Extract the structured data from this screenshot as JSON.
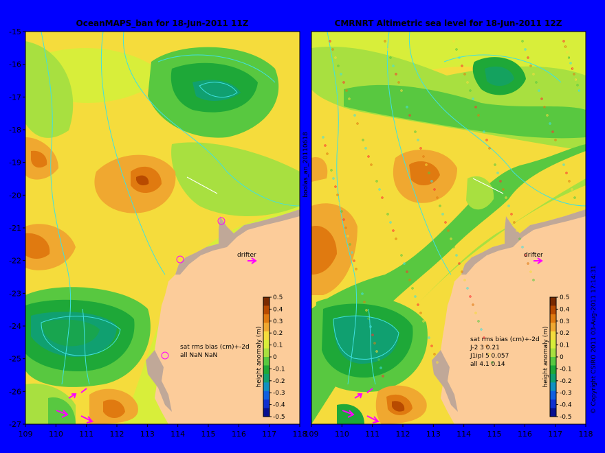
{
  "panels": [
    {
      "id": "left",
      "title": "OceanMAPS_ban for 18-Jun-2011 11Z",
      "stats": [
        "sat rms bias (cm)+-2d",
        "all NaN NaN"
      ],
      "drifter_label": "drifter"
    },
    {
      "id": "right",
      "title": "CMRNRT Altimetric sea level  for 18-Jun-2011 12Z",
      "stats": [
        "sat rms bias (cm)+-2d",
        "J-2   3 0.21",
        "J1ipl 5 0.057",
        "all 4.1 0.14"
      ],
      "drifter_label": "drifter"
    }
  ],
  "axes": {
    "x_ticks": [
      "109",
      "110",
      "111",
      "112",
      "113",
      "114",
      "115",
      "116",
      "117",
      "118"
    ],
    "y_ticks": [
      "-15",
      "-16",
      "-17",
      "-18",
      "-19",
      "-20",
      "-21",
      "-22",
      "-23",
      "-24",
      "-25",
      "-26",
      "-27"
    ],
    "x_range": [
      109,
      118
    ],
    "y_range": [
      -27,
      -15
    ]
  },
  "colorbar": {
    "label": "height anomaly (m)",
    "ticks": [
      "0.5",
      "0.4",
      "0.3",
      "0.2",
      "0.1",
      "0",
      "-0.1",
      "-0.2",
      "-0.3",
      "-0.4",
      "-0.5"
    ],
    "colors": [
      "#7a2a00",
      "#b84a00",
      "#e07a10",
      "#f0a830",
      "#f5dc3c",
      "#d8ee3a",
      "#a8e040",
      "#58c840",
      "#1ea838",
      "#10a070",
      "#1090c0",
      "#1060e0",
      "#1030d0",
      "#081090"
    ]
  },
  "side_text": {
    "mid": "boolas_an_20110618",
    "copyright": "© Copyright CSIRO 2011   03-Aug-2011 17:14:31"
  },
  "colors": {
    "background": "#0000ff",
    "land": "#fccc9a",
    "coast_gray": "#c0a898",
    "contour": "#40e0e0",
    "drifter": "#ff00ff"
  }
}
